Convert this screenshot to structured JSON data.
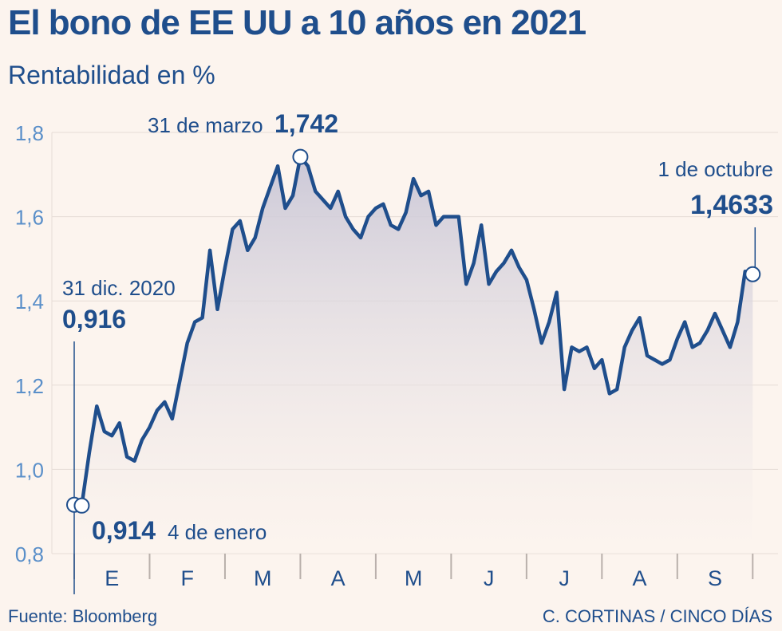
{
  "header": {
    "title": "El bono de EE UU a 10 años en 2021",
    "subtitle": "Rentabilidad en %"
  },
  "footer": {
    "source": "Fuente: Bloomberg",
    "credit": "C. CORTINAS / CINCO DÍAS"
  },
  "colors": {
    "line": "#1f4e8c",
    "area_top": "#c9c6d6",
    "background": "#fcf4ee",
    "grid": "#e6dcd6",
    "tick": "#5a8fc9",
    "text": "#1f4e8c"
  },
  "annotations": {
    "start_label": "31 dic. 2020",
    "start_value": "0,916",
    "min_value": "0,914",
    "min_label": "4 de enero",
    "peak_label": "31 de marzo",
    "peak_value": "1,742",
    "end_label": "1 de octubre",
    "end_value": "1,4633"
  },
  "chart_data": {
    "type": "area",
    "title": "El bono de EE UU a 10 años en 2021",
    "subtitle": "Rentabilidad en %",
    "xlabel": "",
    "ylabel": "",
    "ylim": [
      0.8,
      1.8
    ],
    "yticks": [
      0.8,
      1.0,
      1.2,
      1.4,
      1.6,
      1.8
    ],
    "ytick_labels": [
      "0,8",
      "1,0",
      "1,2",
      "1,4",
      "1,6",
      "1,8"
    ],
    "xlim": [
      0,
      9.05
    ],
    "months": [
      "E",
      "F",
      "M",
      "A",
      "M",
      "J",
      "J",
      "A",
      "S"
    ],
    "grid": true,
    "series": [
      {
        "name": "",
        "x": [
          0.0,
          0.1,
          0.2,
          0.3,
          0.4,
          0.5,
          0.6,
          0.7,
          0.8,
          0.9,
          1.0,
          1.1,
          1.2,
          1.3,
          1.4,
          1.5,
          1.6,
          1.7,
          1.8,
          1.9,
          2.0,
          2.1,
          2.2,
          2.3,
          2.4,
          2.5,
          2.6,
          2.7,
          2.8,
          2.9,
          3.0,
          3.1,
          3.2,
          3.3,
          3.4,
          3.5,
          3.6,
          3.7,
          3.8,
          3.9,
          4.0,
          4.1,
          4.2,
          4.3,
          4.4,
          4.5,
          4.6,
          4.7,
          4.8,
          4.9,
          5.0,
          5.1,
          5.2,
          5.3,
          5.4,
          5.5,
          5.6,
          5.7,
          5.8,
          5.9,
          6.0,
          6.1,
          6.2,
          6.3,
          6.4,
          6.5,
          6.6,
          6.7,
          6.8,
          6.9,
          7.0,
          7.1,
          7.2,
          7.3,
          7.4,
          7.5,
          7.6,
          7.7,
          7.8,
          7.9,
          8.0,
          8.1,
          8.2,
          8.3,
          8.4,
          8.5,
          8.6,
          8.7,
          8.8,
          8.9,
          9.0
        ],
        "y": [
          0.916,
          0.914,
          1.04,
          1.15,
          1.09,
          1.08,
          1.11,
          1.03,
          1.02,
          1.07,
          1.1,
          1.14,
          1.16,
          1.12,
          1.21,
          1.3,
          1.35,
          1.36,
          1.52,
          1.38,
          1.48,
          1.57,
          1.59,
          1.52,
          1.55,
          1.62,
          1.67,
          1.72,
          1.62,
          1.65,
          1.742,
          1.72,
          1.66,
          1.64,
          1.62,
          1.66,
          1.6,
          1.57,
          1.55,
          1.6,
          1.62,
          1.63,
          1.58,
          1.57,
          1.61,
          1.69,
          1.65,
          1.66,
          1.58,
          1.6,
          1.6,
          1.6,
          1.44,
          1.49,
          1.58,
          1.44,
          1.47,
          1.49,
          1.52,
          1.48,
          1.45,
          1.38,
          1.3,
          1.35,
          1.42,
          1.19,
          1.29,
          1.28,
          1.29,
          1.24,
          1.26,
          1.18,
          1.19,
          1.29,
          1.33,
          1.36,
          1.27,
          1.26,
          1.25,
          1.26,
          1.31,
          1.35,
          1.29,
          1.3,
          1.33,
          1.37,
          1.33,
          1.29,
          1.35,
          1.47,
          1.4633
        ]
      }
    ]
  }
}
